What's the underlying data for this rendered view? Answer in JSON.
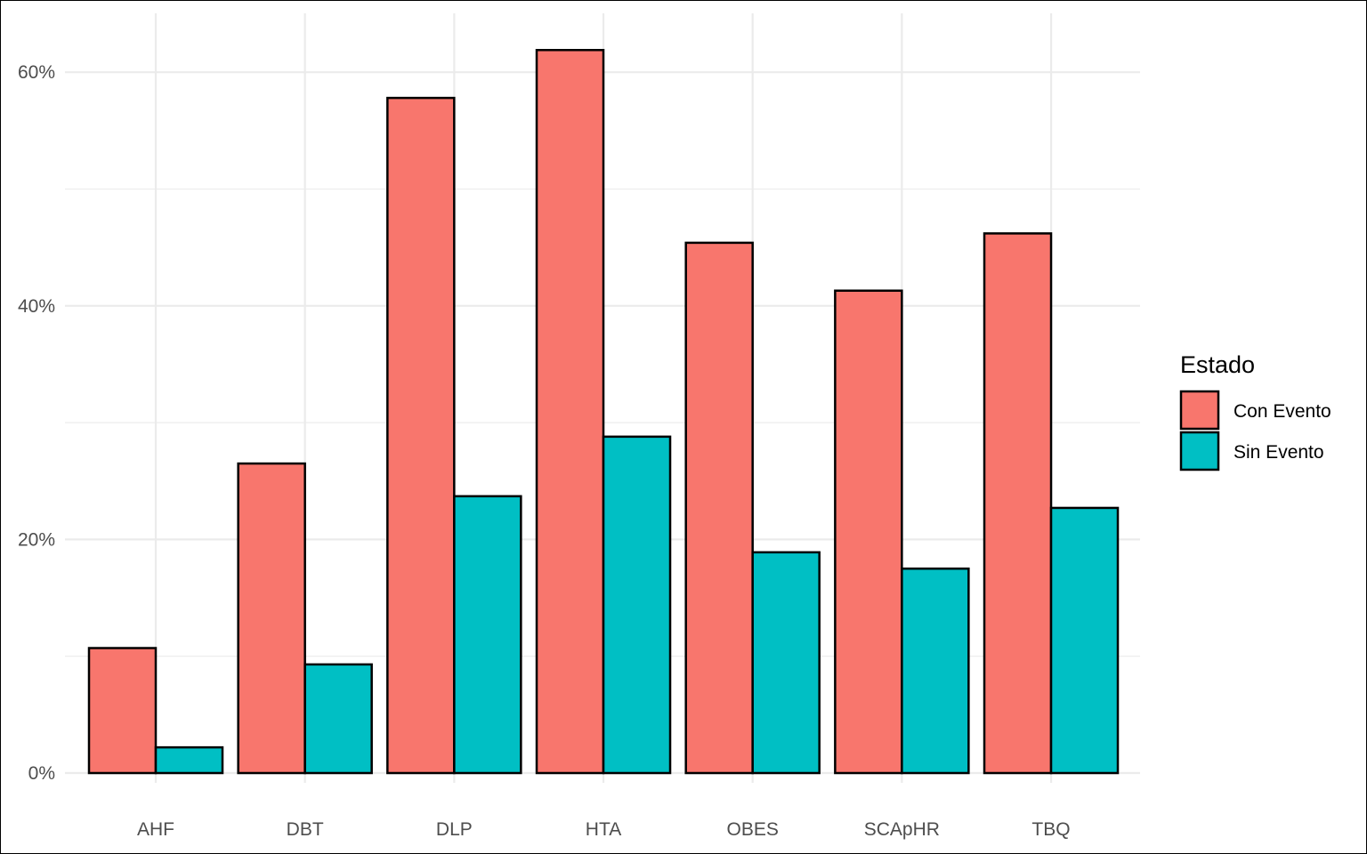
{
  "chart_data": {
    "type": "bar",
    "categories": [
      "AHF",
      "DBT",
      "DLP",
      "HTA",
      "OBES",
      "SCApHR",
      "TBQ"
    ],
    "series": [
      {
        "name": "Con Evento",
        "color": "#F8766D",
        "values": [
          10.7,
          26.5,
          57.8,
          61.9,
          45.4,
          41.3,
          46.2
        ]
      },
      {
        "name": "Sin Evento",
        "color": "#00BFC4",
        "values": [
          2.2,
          9.3,
          23.7,
          28.8,
          18.9,
          17.5,
          22.7
        ]
      }
    ],
    "y_ticks": [
      "0%",
      "20%",
      "40%",
      "60%"
    ],
    "y_tick_values": [
      0,
      20,
      40,
      60
    ],
    "ylim": [
      0,
      62
    ],
    "grid": true,
    "legend": {
      "title": "Estado",
      "position": "right"
    }
  }
}
